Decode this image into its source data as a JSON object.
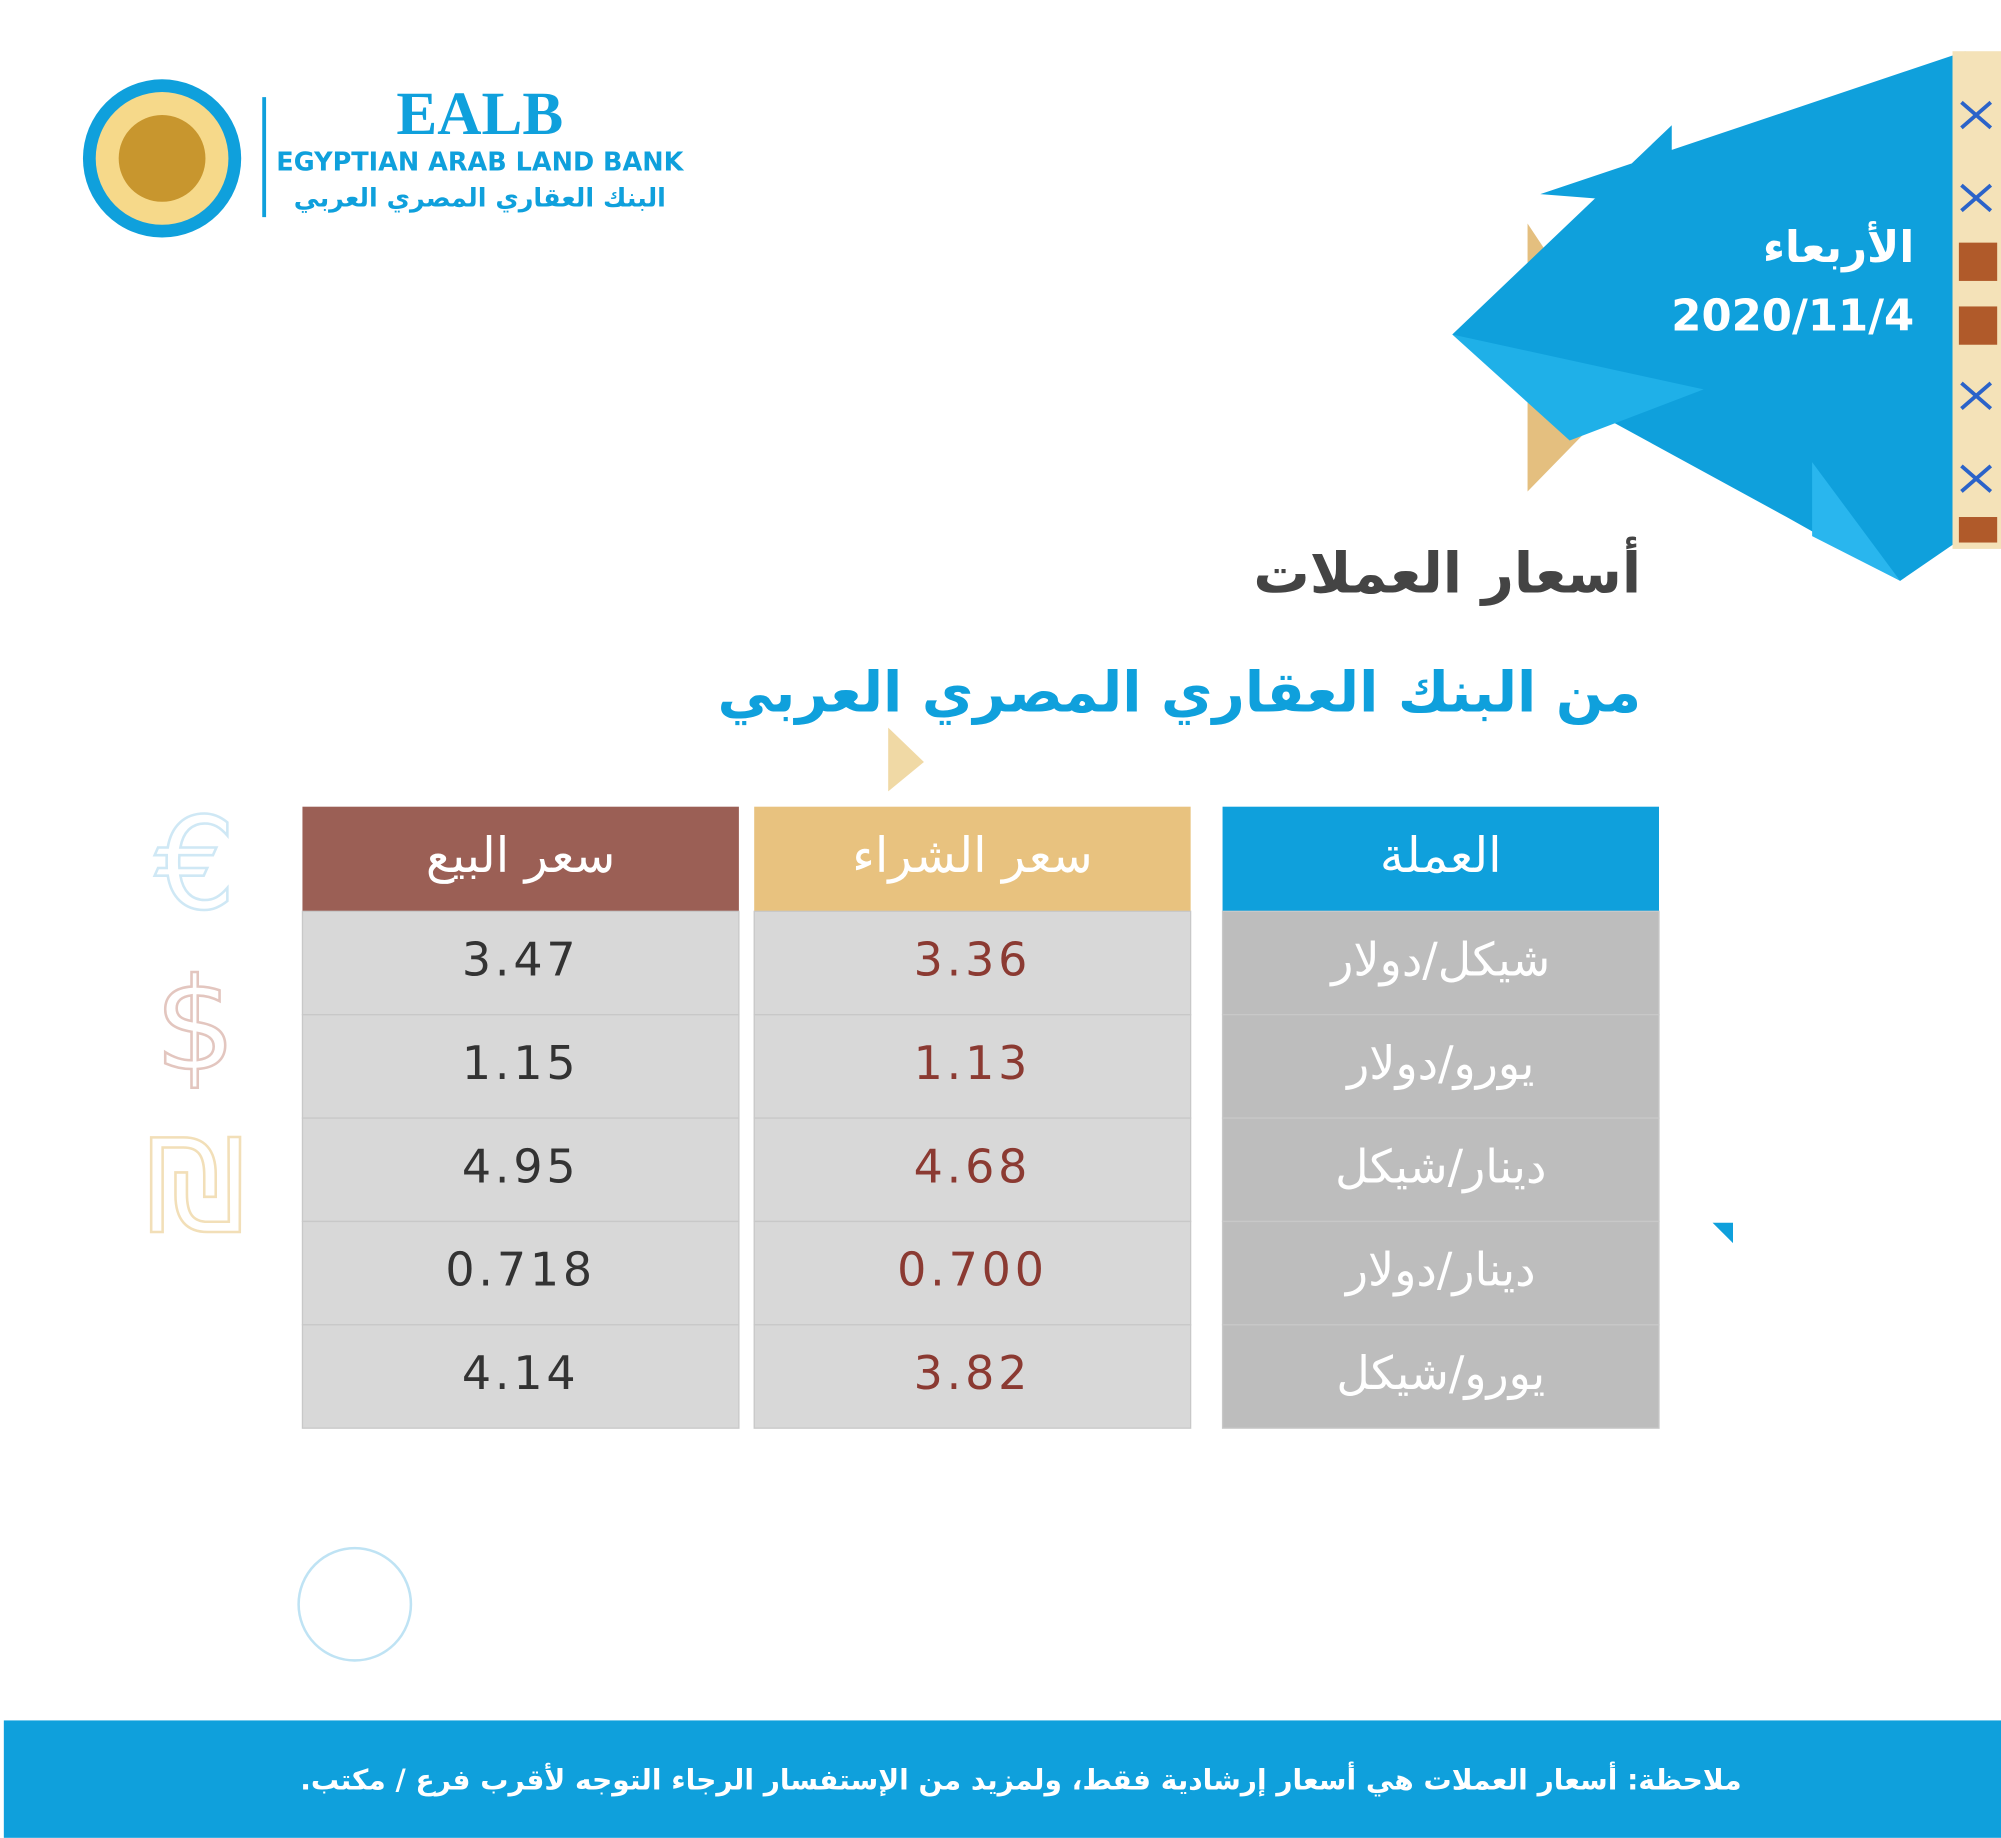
{
  "logo": {
    "acronym": "EALB",
    "name_en": "EGYPTIAN ARAB LAND BANK",
    "name_ar": "البنك العقاري المصري العربي"
  },
  "date": {
    "day": "الأربعاء",
    "date": "2020/11/4"
  },
  "heading": {
    "title": "أسعار العملات",
    "subtitle": "من البنك العقاري المصري العربي"
  },
  "icons": [
    "€",
    "$",
    "₪"
  ],
  "table": {
    "headers": [
      "العملة",
      "سعر الشراء",
      "سعر البيع"
    ],
    "rows": [
      [
        "شيكل/دولار",
        "3.36",
        "3.47"
      ],
      [
        "يورو/دولار",
        "1.13",
        "1.15"
      ],
      [
        "دينار/شيكل",
        "4.68",
        "4.95"
      ],
      [
        "دينار/دولار",
        "0.700",
        "0.718"
      ],
      [
        "يورو/شيكل",
        "3.82",
        "4.14"
      ]
    ]
  },
  "note": "ملاحظة: أسعار العملات هي أسعار إرشادية فقط، ولمزيد من الإستفسار الرجاء التوجه لأقرب فرع / مكتب."
}
